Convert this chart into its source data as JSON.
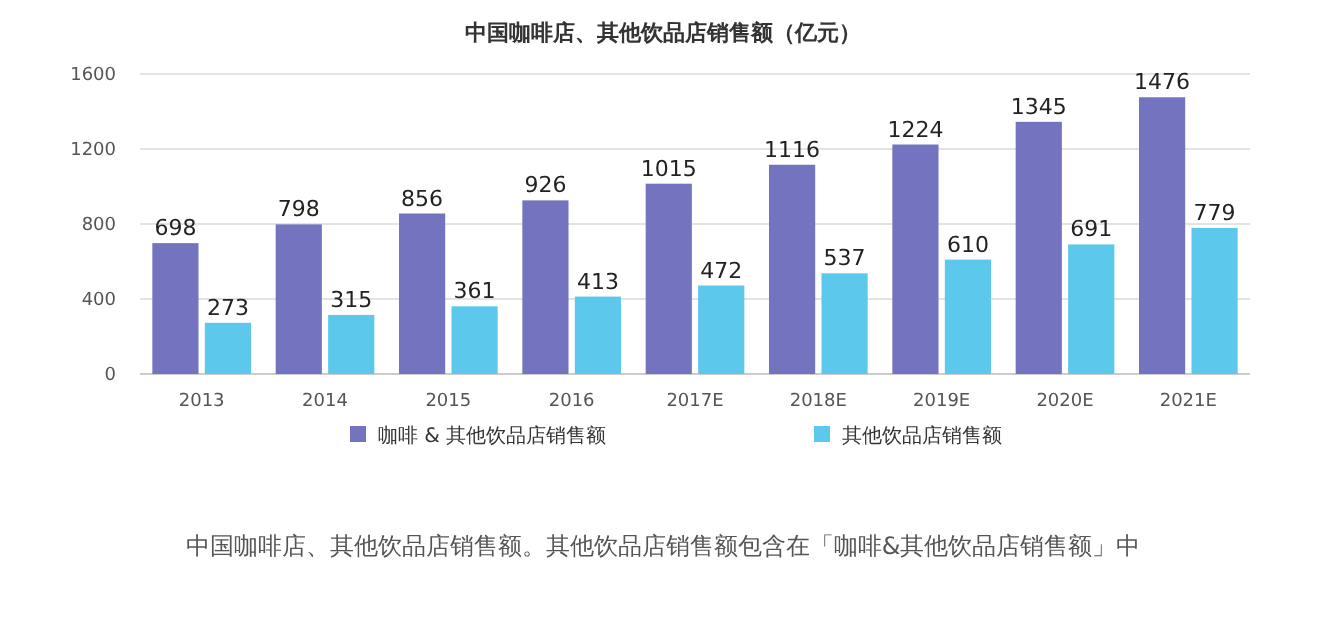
{
  "chart_data": {
    "type": "bar",
    "title": "中国咖啡店、其他饮品店销售额（亿元）",
    "categories": [
      "2013",
      "2014",
      "2015",
      "2016",
      "2017E",
      "2018E",
      "2019E",
      "2020E",
      "2021E"
    ],
    "series": [
      {
        "name": "咖啡 & 其他饮品店销售额",
        "color": "#7473c0",
        "values": [
          698,
          798,
          856,
          926,
          1015,
          1116,
          1224,
          1345,
          1476
        ]
      },
      {
        "name": "其他饮品店销售额",
        "color": "#5bc8ec",
        "values": [
          273,
          315,
          361,
          413,
          472,
          537,
          610,
          691,
          779
        ]
      }
    ],
    "ylim": [
      0,
      1600
    ],
    "yticks": [
      0,
      400,
      800,
      1200,
      1600
    ],
    "grid": "y",
    "legend": "bottom",
    "data_labels": true,
    "annotations": [
      "中国咖啡店、其他饮品店销售额。其他饮品店销售额包含在「咖啡&其他饮品店销售额」中"
    ]
  }
}
